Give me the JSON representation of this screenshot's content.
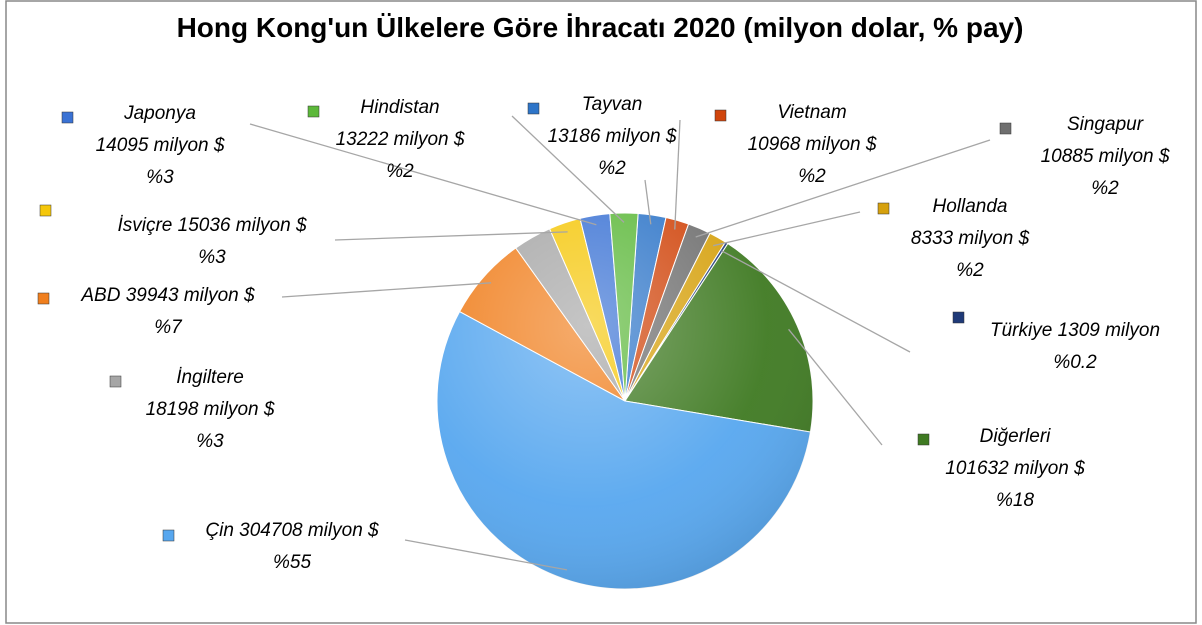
{
  "chart_data": {
    "type": "pie",
    "title": "Hong Kong'un Ülkelere Göre İhracatı 2020 (milyon dolar, % pay)",
    "categories": [
      "Tayvan",
      "Vietnam",
      "Singapur",
      "Hollanda",
      "Türkiye",
      "Diğerleri",
      "Çin",
      "ABD",
      "İngiltere",
      "İsviçre",
      "Japonya",
      "Hindistan"
    ],
    "values": [
      13186,
      10968,
      10885,
      8333,
      1309,
      101632,
      304708,
      39943,
      18198,
      15036,
      14095,
      13222
    ],
    "value_labels": [
      "13186 milyon $",
      "10968 milyon $",
      "10885 milyon $",
      "8333 milyon $",
      "1309 milyon",
      "101632 milyon $",
      "304708 milyon $",
      "39943 milyon $",
      "18198 milyon $",
      "15036 milyon $",
      "14095 milyon $",
      "13222 milyon $"
    ],
    "percents": [
      2,
      2,
      2,
      2,
      0.2,
      18,
      55,
      7,
      3,
      3,
      3,
      2
    ],
    "percent_labels": [
      "%2",
      "%2",
      "%2",
      "%2",
      "%0.2",
      "%18",
      "%55",
      "%7",
      "%3",
      "%3",
      "%3",
      "%2"
    ],
    "colors": [
      "#2e75c8",
      "#d0450c",
      "#6f6f6f",
      "#d6a10e",
      "#1f3a78",
      "#3f7a22",
      "#57a7ef",
      "#f07f1e",
      "#a6a6a6",
      "#f5c70a",
      "#3a72d4",
      "#5cb83a"
    ]
  }
}
